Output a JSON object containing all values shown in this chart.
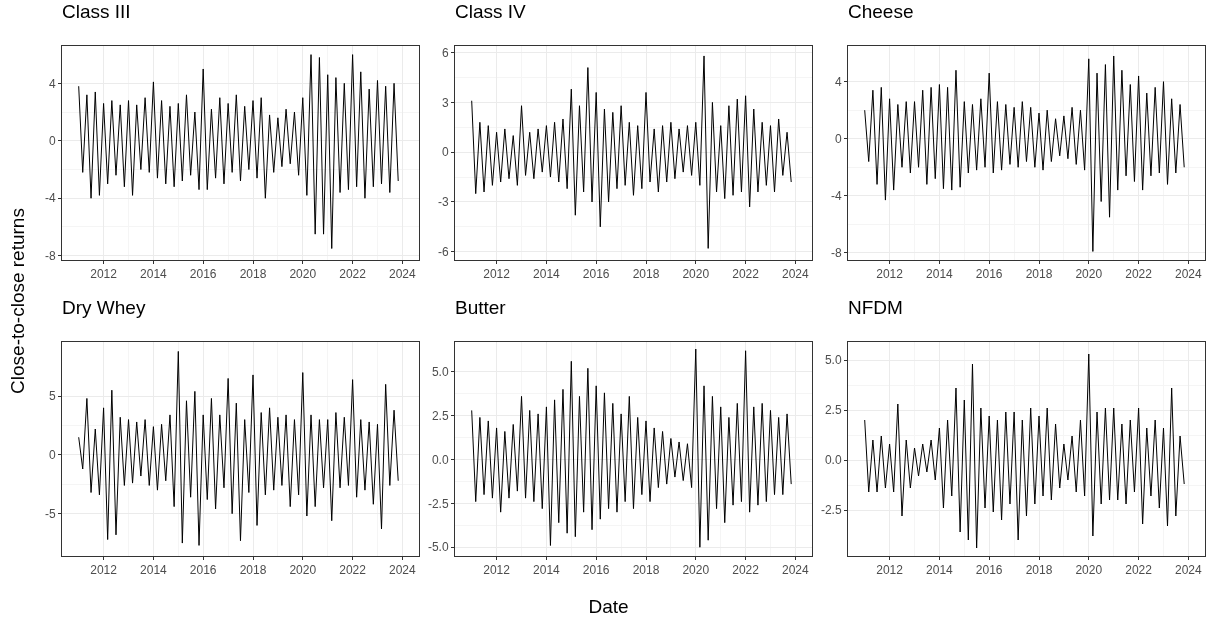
{
  "chart_data": [
    {
      "type": "line",
      "title": "Class III",
      "ylabel": "Close-to-close returns",
      "grid": true,
      "xlim": [
        "2010-05",
        "2024-09"
      ],
      "xticks": [
        "2012",
        "2014",
        "2016",
        "2018",
        "2020",
        "2022",
        "2024"
      ],
      "ylim": [
        -8.3,
        6.6
      ],
      "yticks": [
        -8,
        -4,
        0,
        4
      ],
      "x": [
        "2011-01",
        "2011-03",
        "2011-05",
        "2011-07",
        "2011-09",
        "2011-11",
        "2012-01",
        "2012-03",
        "2012-05",
        "2012-07",
        "2012-09",
        "2012-11",
        "2013-01",
        "2013-03",
        "2013-05",
        "2013-07",
        "2013-09",
        "2013-11",
        "2014-01",
        "2014-03",
        "2014-05",
        "2014-07",
        "2014-09",
        "2014-11",
        "2015-01",
        "2015-03",
        "2015-05",
        "2015-07",
        "2015-09",
        "2015-11",
        "2016-01",
        "2016-03",
        "2016-05",
        "2016-07",
        "2016-09",
        "2016-11",
        "2017-01",
        "2017-03",
        "2017-05",
        "2017-07",
        "2017-09",
        "2017-11",
        "2018-01",
        "2018-03",
        "2018-05",
        "2018-07",
        "2018-09",
        "2018-11",
        "2019-01",
        "2019-03",
        "2019-05",
        "2019-07",
        "2019-09",
        "2019-11",
        "2020-01",
        "2020-03",
        "2020-05",
        "2020-07",
        "2020-09",
        "2020-11",
        "2021-01",
        "2021-03",
        "2021-05",
        "2021-07",
        "2021-09",
        "2021-11",
        "2022-01",
        "2022-03",
        "2022-05",
        "2022-07",
        "2022-09",
        "2022-11",
        "2023-01",
        "2023-03",
        "2023-05",
        "2023-07",
        "2023-09",
        "2023-11"
      ],
      "series": [
        {
          "color": "#000000",
          "values": [
            3.8,
            -2.2,
            3.2,
            -4.0,
            3.4,
            -3.8,
            2.6,
            -3.0,
            2.8,
            -2.4,
            2.5,
            -3.2,
            2.8,
            -3.8,
            2.5,
            -2.0,
            3.0,
            -2.2,
            4.1,
            -2.6,
            2.8,
            -3.0,
            2.4,
            -3.2,
            2.6,
            -2.8,
            3.2,
            -2.4,
            2.0,
            -3.4,
            5.0,
            -3.4,
            2.2,
            -2.6,
            3.0,
            -3.0,
            2.6,
            -2.2,
            3.2,
            -2.8,
            2.4,
            -2.0,
            2.8,
            -2.6,
            3.0,
            -4.0,
            1.8,
            -2.2,
            1.6,
            -1.8,
            2.2,
            -1.6,
            2.0,
            -2.4,
            3.0,
            -3.8,
            6.0,
            -6.5,
            5.8,
            -6.5,
            4.6,
            -7.5,
            4.4,
            -3.6,
            4.0,
            -3.4,
            6.0,
            -3.2,
            4.8,
            -4.0,
            3.6,
            -3.2,
            4.2,
            -3.0,
            3.8,
            -3.6,
            4.0,
            -2.8
          ]
        }
      ]
    },
    {
      "type": "line",
      "title": "Class IV",
      "grid": true,
      "xlim": [
        "2010-05",
        "2024-09"
      ],
      "xticks": [
        "2012",
        "2014",
        "2016",
        "2018",
        "2020",
        "2022",
        "2024"
      ],
      "ylim": [
        -6.5,
        6.4
      ],
      "yticks": [
        -6,
        -3,
        0,
        3,
        6
      ],
      "x": [
        "2011-01",
        "2011-03",
        "2011-05",
        "2011-07",
        "2011-09",
        "2011-11",
        "2012-01",
        "2012-03",
        "2012-05",
        "2012-07",
        "2012-09",
        "2012-11",
        "2013-01",
        "2013-03",
        "2013-05",
        "2013-07",
        "2013-09",
        "2013-11",
        "2014-01",
        "2014-03",
        "2014-05",
        "2014-07",
        "2014-09",
        "2014-11",
        "2015-01",
        "2015-03",
        "2015-05",
        "2015-07",
        "2015-09",
        "2015-11",
        "2016-01",
        "2016-03",
        "2016-05",
        "2016-07",
        "2016-09",
        "2016-11",
        "2017-01",
        "2017-03",
        "2017-05",
        "2017-07",
        "2017-09",
        "2017-11",
        "2018-01",
        "2018-03",
        "2018-05",
        "2018-07",
        "2018-09",
        "2018-11",
        "2019-01",
        "2019-03",
        "2019-05",
        "2019-07",
        "2019-09",
        "2019-11",
        "2020-01",
        "2020-03",
        "2020-05",
        "2020-07",
        "2020-09",
        "2020-11",
        "2021-01",
        "2021-03",
        "2021-05",
        "2021-07",
        "2021-09",
        "2021-11",
        "2022-01",
        "2022-03",
        "2022-05",
        "2022-07",
        "2022-09",
        "2022-11",
        "2023-01",
        "2023-03",
        "2023-05",
        "2023-07",
        "2023-09",
        "2023-11"
      ],
      "series": [
        {
          "color": "#000000",
          "values": [
            3.1,
            -2.5,
            1.8,
            -2.4,
            1.6,
            -2.0,
            1.2,
            -1.8,
            1.4,
            -1.6,
            1.0,
            -2.0,
            2.8,
            -1.4,
            1.2,
            -1.6,
            1.4,
            -1.2,
            1.6,
            -1.5,
            1.8,
            -1.8,
            2.0,
            -2.2,
            3.8,
            -3.8,
            2.8,
            -2.4,
            5.1,
            -3.0,
            3.6,
            -4.5,
            2.6,
            -3.0,
            2.4,
            -2.2,
            2.8,
            -2.0,
            1.8,
            -2.6,
            1.6,
            -2.2,
            3.6,
            -1.8,
            1.4,
            -2.4,
            1.6,
            -1.8,
            1.8,
            -1.6,
            1.4,
            -1.2,
            1.6,
            -1.4,
            1.8,
            -2.0,
            5.8,
            -5.8,
            3.0,
            -2.4,
            1.6,
            -2.8,
            2.8,
            -2.6,
            3.2,
            -2.4,
            3.4,
            -3.3,
            2.6,
            -2.4,
            1.8,
            -2.0,
            1.6,
            -2.4,
            2.0,
            -1.4,
            1.2,
            -1.8
          ]
        }
      ]
    },
    {
      "type": "line",
      "title": "Cheese",
      "grid": true,
      "xlim": [
        "2010-05",
        "2024-09"
      ],
      "xticks": [
        "2012",
        "2014",
        "2016",
        "2018",
        "2020",
        "2022",
        "2024"
      ],
      "ylim": [
        -8.5,
        6.5
      ],
      "yticks": [
        -8,
        -4,
        0,
        4
      ],
      "x": [
        "2011-01",
        "2011-03",
        "2011-05",
        "2011-07",
        "2011-09",
        "2011-11",
        "2012-01",
        "2012-03",
        "2012-05",
        "2012-07",
        "2012-09",
        "2012-11",
        "2013-01",
        "2013-03",
        "2013-05",
        "2013-07",
        "2013-09",
        "2013-11",
        "2014-01",
        "2014-03",
        "2014-05",
        "2014-07",
        "2014-09",
        "2014-11",
        "2015-01",
        "2015-03",
        "2015-05",
        "2015-07",
        "2015-09",
        "2015-11",
        "2016-01",
        "2016-03",
        "2016-05",
        "2016-07",
        "2016-09",
        "2016-11",
        "2017-01",
        "2017-03",
        "2017-05",
        "2017-07",
        "2017-09",
        "2017-11",
        "2018-01",
        "2018-03",
        "2018-05",
        "2018-07",
        "2018-09",
        "2018-11",
        "2019-01",
        "2019-03",
        "2019-05",
        "2019-07",
        "2019-09",
        "2019-11",
        "2020-01",
        "2020-03",
        "2020-05",
        "2020-07",
        "2020-09",
        "2020-11",
        "2021-01",
        "2021-03",
        "2021-05",
        "2021-07",
        "2021-09",
        "2021-11",
        "2022-01",
        "2022-03",
        "2022-05",
        "2022-07",
        "2022-09",
        "2022-11",
        "2023-01",
        "2023-03",
        "2023-05",
        "2023-07",
        "2023-09",
        "2023-11"
      ],
      "series": [
        {
          "color": "#000000",
          "values": [
            2.0,
            -1.6,
            3.4,
            -3.2,
            3.6,
            -4.3,
            2.8,
            -3.6,
            2.4,
            -2.0,
            2.6,
            -2.4,
            2.6,
            -2.0,
            3.4,
            -3.2,
            3.6,
            -2.8,
            3.8,
            -3.5,
            3.6,
            -3.6,
            4.8,
            -3.4,
            2.6,
            -2.4,
            2.4,
            -2.2,
            2.8,
            -2.0,
            4.6,
            -2.4,
            2.6,
            -2.2,
            2.4,
            -1.8,
            2.2,
            -2.0,
            2.6,
            -1.6,
            2.2,
            -2.0,
            1.8,
            -2.2,
            2.0,
            -1.6,
            1.4,
            -1.2,
            1.6,
            -1.4,
            2.2,
            -1.8,
            2.0,
            -2.2,
            5.6,
            -7.9,
            4.6,
            -4.4,
            5.2,
            -5.5,
            5.8,
            -3.6,
            4.8,
            -2.6,
            3.8,
            -3.0,
            4.4,
            -3.6,
            3.2,
            -2.6,
            3.6,
            -2.4,
            4.0,
            -3.2,
            2.8,
            -2.4,
            2.4,
            -2.0
          ]
        }
      ]
    },
    {
      "type": "line",
      "title": "Dry Whey",
      "grid": true,
      "xlim": [
        "2010-05",
        "2024-09"
      ],
      "xticks": [
        "2012",
        "2014",
        "2016",
        "2018",
        "2020",
        "2022",
        "2024"
      ],
      "ylim": [
        -8.6,
        9.6
      ],
      "yticks": [
        -5,
        0,
        5
      ],
      "x": [
        "2011-01",
        "2011-03",
        "2011-05",
        "2011-07",
        "2011-09",
        "2011-11",
        "2012-01",
        "2012-03",
        "2012-05",
        "2012-07",
        "2012-09",
        "2012-11",
        "2013-01",
        "2013-03",
        "2013-05",
        "2013-07",
        "2013-09",
        "2013-11",
        "2014-01",
        "2014-03",
        "2014-05",
        "2014-07",
        "2014-09",
        "2014-11",
        "2015-01",
        "2015-03",
        "2015-05",
        "2015-07",
        "2015-09",
        "2015-11",
        "2016-01",
        "2016-03",
        "2016-05",
        "2016-07",
        "2016-09",
        "2016-11",
        "2017-01",
        "2017-03",
        "2017-05",
        "2017-07",
        "2017-09",
        "2017-11",
        "2018-01",
        "2018-03",
        "2018-05",
        "2018-07",
        "2018-09",
        "2018-11",
        "2019-01",
        "2019-03",
        "2019-05",
        "2019-07",
        "2019-09",
        "2019-11",
        "2020-01",
        "2020-03",
        "2020-05",
        "2020-07",
        "2020-09",
        "2020-11",
        "2021-01",
        "2021-03",
        "2021-05",
        "2021-07",
        "2021-09",
        "2021-11",
        "2022-01",
        "2022-03",
        "2022-05",
        "2022-07",
        "2022-09",
        "2022-11",
        "2023-01",
        "2023-03",
        "2023-05",
        "2023-07",
        "2023-09",
        "2023-11"
      ],
      "series": [
        {
          "color": "#000000",
          "values": [
            1.5,
            -1.2,
            4.8,
            -3.2,
            2.2,
            -3.4,
            4.0,
            -7.2,
            5.5,
            -6.8,
            3.2,
            -2.6,
            3.0,
            -2.4,
            2.8,
            -1.8,
            3.0,
            -2.6,
            2.4,
            -3.0,
            2.6,
            -2.2,
            3.4,
            -4.4,
            8.8,
            -7.5,
            4.6,
            -3.6,
            5.4,
            -7.7,
            3.4,
            -3.8,
            4.8,
            -4.6,
            3.4,
            -2.8,
            6.5,
            -5.0,
            4.4,
            -7.3,
            3.0,
            -3.2,
            6.8,
            -6.0,
            3.6,
            -3.4,
            4.0,
            -3.0,
            3.2,
            -2.6,
            3.4,
            -4.4,
            3.0,
            -3.4,
            7.0,
            -5.2,
            3.4,
            -4.4,
            3.0,
            -2.8,
            3.0,
            -5.6,
            3.6,
            -2.8,
            3.2,
            -2.6,
            6.4,
            -3.6,
            3.0,
            -3.0,
            2.8,
            -4.2,
            2.6,
            -6.3,
            6.0,
            -2.6,
            3.8,
            -2.2
          ]
        }
      ]
    },
    {
      "type": "line",
      "title": "Butter",
      "xlabel": "Date",
      "grid": true,
      "xlim": [
        "2010-05",
        "2024-09"
      ],
      "xticks": [
        "2012",
        "2014",
        "2016",
        "2018",
        "2020",
        "2022",
        "2024"
      ],
      "ylim": [
        -5.5,
        6.7
      ],
      "yticks": [
        {
          "value": -5,
          "label": "-5.0"
        },
        {
          "value": -2.5,
          "label": "-2.5"
        },
        {
          "value": 0,
          "label": "0.0"
        },
        {
          "value": 2.5,
          "label": "2.5"
        },
        {
          "value": 5,
          "label": "5.0"
        }
      ],
      "x": [
        "2011-01",
        "2011-03",
        "2011-05",
        "2011-07",
        "2011-09",
        "2011-11",
        "2012-01",
        "2012-03",
        "2012-05",
        "2012-07",
        "2012-09",
        "2012-11",
        "2013-01",
        "2013-03",
        "2013-05",
        "2013-07",
        "2013-09",
        "2013-11",
        "2014-01",
        "2014-03",
        "2014-05",
        "2014-07",
        "2014-09",
        "2014-11",
        "2015-01",
        "2015-03",
        "2015-05",
        "2015-07",
        "2015-09",
        "2015-11",
        "2016-01",
        "2016-03",
        "2016-05",
        "2016-07",
        "2016-09",
        "2016-11",
        "2017-01",
        "2017-03",
        "2017-05",
        "2017-07",
        "2017-09",
        "2017-11",
        "2018-01",
        "2018-03",
        "2018-05",
        "2018-07",
        "2018-09",
        "2018-11",
        "2019-01",
        "2019-03",
        "2019-05",
        "2019-07",
        "2019-09",
        "2019-11",
        "2020-01",
        "2020-03",
        "2020-05",
        "2020-07",
        "2020-09",
        "2020-11",
        "2021-01",
        "2021-03",
        "2021-05",
        "2021-07",
        "2021-09",
        "2021-11",
        "2022-01",
        "2022-03",
        "2022-05",
        "2022-07",
        "2022-09",
        "2022-11",
        "2023-01",
        "2023-03",
        "2023-05",
        "2023-07",
        "2023-09",
        "2023-11"
      ],
      "series": [
        {
          "color": "#000000",
          "values": [
            2.8,
            -2.4,
            2.4,
            -2.0,
            2.2,
            -2.2,
            1.8,
            -3.0,
            1.6,
            -2.2,
            2.0,
            -1.8,
            3.6,
            -2.2,
            2.8,
            -2.4,
            2.6,
            -2.8,
            3.0,
            -4.9,
            3.4,
            -3.6,
            4.0,
            -4.2,
            5.6,
            -4.4,
            3.6,
            -3.0,
            5.2,
            -4.0,
            4.2,
            -3.4,
            3.8,
            -2.8,
            3.2,
            -3.0,
            2.6,
            -2.4,
            3.6,
            -2.8,
            2.4,
            -2.0,
            2.2,
            -2.4,
            1.8,
            -1.6,
            1.6,
            -1.4,
            1.2,
            -1.0,
            1.0,
            -1.2,
            0.9,
            -1.6,
            6.3,
            -5.0,
            4.2,
            -4.6,
            3.6,
            -2.8,
            3.0,
            -3.6,
            2.4,
            -2.6,
            3.2,
            -2.4,
            6.2,
            -3.0,
            3.0,
            -2.6,
            3.2,
            -2.4,
            2.8,
            -2.0,
            2.4,
            -2.0,
            2.6,
            -1.4
          ]
        }
      ]
    },
    {
      "type": "line",
      "title": "NFDM",
      "grid": true,
      "xlim": [
        "2010-05",
        "2024-09"
      ],
      "xticks": [
        "2012",
        "2014",
        "2016",
        "2018",
        "2020",
        "2022",
        "2024"
      ],
      "ylim": [
        -4.8,
        5.9
      ],
      "yticks": [
        {
          "value": -2.5,
          "label": "-2.5"
        },
        {
          "value": 0,
          "label": "0.0"
        },
        {
          "value": 2.5,
          "label": "2.5"
        },
        {
          "value": 5,
          "label": "5.0"
        }
      ],
      "x": [
        "2011-01",
        "2011-03",
        "2011-05",
        "2011-07",
        "2011-09",
        "2011-11",
        "2012-01",
        "2012-03",
        "2012-05",
        "2012-07",
        "2012-09",
        "2012-11",
        "2013-01",
        "2013-03",
        "2013-05",
        "2013-07",
        "2013-09",
        "2013-11",
        "2014-01",
        "2014-03",
        "2014-05",
        "2014-07",
        "2014-09",
        "2014-11",
        "2015-01",
        "2015-03",
        "2015-05",
        "2015-07",
        "2015-09",
        "2015-11",
        "2016-01",
        "2016-03",
        "2016-05",
        "2016-07",
        "2016-09",
        "2016-11",
        "2017-01",
        "2017-03",
        "2017-05",
        "2017-07",
        "2017-09",
        "2017-11",
        "2018-01",
        "2018-03",
        "2018-05",
        "2018-07",
        "2018-09",
        "2018-11",
        "2019-01",
        "2019-03",
        "2019-05",
        "2019-07",
        "2019-09",
        "2019-11",
        "2020-01",
        "2020-03",
        "2020-05",
        "2020-07",
        "2020-09",
        "2020-11",
        "2021-01",
        "2021-03",
        "2021-05",
        "2021-07",
        "2021-09",
        "2021-11",
        "2022-01",
        "2022-03",
        "2022-05",
        "2022-07",
        "2022-09",
        "2022-11",
        "2023-01",
        "2023-03",
        "2023-05",
        "2023-07",
        "2023-09",
        "2023-11"
      ],
      "series": [
        {
          "color": "#000000",
          "values": [
            2.0,
            -1.6,
            1.0,
            -1.6,
            1.2,
            -1.4,
            0.8,
            -1.6,
            2.8,
            -2.8,
            1.0,
            -1.4,
            0.6,
            -0.8,
            0.8,
            -0.6,
            1.0,
            -1.0,
            1.6,
            -2.4,
            2.0,
            -1.8,
            3.6,
            -3.6,
            3.0,
            -4.0,
            4.8,
            -4.4,
            2.6,
            -2.4,
            2.2,
            -2.6,
            2.0,
            -3.0,
            2.4,
            -2.2,
            2.4,
            -4.0,
            2.0,
            -2.8,
            2.6,
            -2.2,
            2.2,
            -1.8,
            2.6,
            -2.0,
            1.8,
            -1.4,
            0.8,
            -1.0,
            1.2,
            -1.6,
            2.0,
            -1.8,
            5.3,
            -3.8,
            2.4,
            -2.2,
            2.6,
            -2.0,
            2.6,
            -2.0,
            1.8,
            -2.2,
            2.0,
            -1.6,
            2.6,
            -3.2,
            1.6,
            -1.8,
            2.0,
            -2.4,
            1.6,
            -3.3,
            3.6,
            -2.8,
            1.2,
            -1.2
          ]
        }
      ]
    }
  ]
}
